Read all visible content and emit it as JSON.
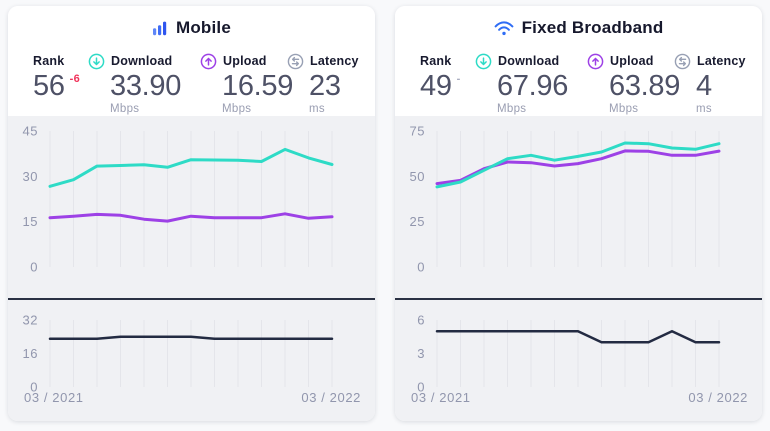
{
  "axis": {
    "start_label": "03 / 2021",
    "end_label": "03 / 2022"
  },
  "colors": {
    "download_teal": "#2edbc6",
    "upload_purple": "#9d41e6",
    "latency_navy": "#232b42",
    "brand_blue": "#3a62f4",
    "rank_down_red": "#f0325a",
    "chart_background": "#f0f1f4",
    "gridline": "#e4e5ea"
  },
  "cards": [
    {
      "title": "Mobile",
      "icon": "mobile-signal-bars-icon",
      "stats": {
        "rank": {
          "label": "Rank",
          "value": "56",
          "delta": "-6",
          "delta_direction": "down"
        },
        "download": {
          "label": "Download",
          "value": "33.90",
          "unit": "Mbps",
          "icon": "download-circle-icon"
        },
        "upload": {
          "label": "Upload",
          "value": "16.59",
          "unit": "Mbps",
          "icon": "upload-circle-icon"
        },
        "latency": {
          "label": "Latency",
          "value": "23",
          "unit": "ms",
          "icon": "latency-swap-icon"
        }
      }
    },
    {
      "title": "Fixed Broadband",
      "icon": "wifi-icon",
      "stats": {
        "rank": {
          "label": "Rank",
          "value": "49",
          "delta": "-",
          "delta_direction": "flat"
        },
        "download": {
          "label": "Download",
          "value": "67.96",
          "unit": "Mbps",
          "icon": "download-circle-icon"
        },
        "upload": {
          "label": "Upload",
          "value": "63.89",
          "unit": "Mbps",
          "icon": "upload-circle-icon"
        },
        "latency": {
          "label": "Latency",
          "value": "4",
          "unit": "ms",
          "icon": "latency-swap-icon"
        }
      }
    }
  ],
  "chart_data": [
    {
      "id": "mobile-speed-history",
      "type": "line",
      "layout": "main",
      "n_points": 13,
      "x_visible_labels": [
        "03 / 2021",
        "03 / 2022"
      ],
      "ylim": [
        0,
        45
      ],
      "yticks": [
        0,
        15,
        30,
        45
      ],
      "grid": "vertical-monthly",
      "legend": "none",
      "series": [
        {
          "name": "Download (Mbps)",
          "color": "#2edbc6",
          "width": 3,
          "values": [
            26.7,
            28.9,
            33.4,
            33.6,
            33.8,
            33.0,
            35.5,
            35.4,
            35.3,
            34.9,
            38.9,
            36.1,
            33.9
          ]
        },
        {
          "name": "Upload (Mbps)",
          "color": "#9d41e6",
          "width": 3,
          "values": [
            16.3,
            16.8,
            17.4,
            17.1,
            15.8,
            15.2,
            16.8,
            16.3,
            16.3,
            16.3,
            17.6,
            16.1,
            16.6
          ]
        }
      ]
    },
    {
      "id": "mobile-latency-history",
      "type": "line",
      "layout": "lower",
      "n_points": 13,
      "x_visible_labels": [
        "03 / 2021",
        "03 / 2022"
      ],
      "ylim": [
        0,
        32
      ],
      "yticks": [
        0,
        16,
        32
      ],
      "grid": "vertical-monthly",
      "legend": "none",
      "series": [
        {
          "name": "Latency (ms)",
          "color": "#232b42",
          "width": 2.5,
          "values": [
            23,
            23,
            23,
            24,
            24,
            24,
            24,
            23,
            23,
            23,
            23,
            23,
            23
          ]
        }
      ]
    },
    {
      "id": "fixed-speed-history",
      "type": "line",
      "layout": "main",
      "n_points": 13,
      "x_visible_labels": [
        "03 / 2021",
        "03 / 2022"
      ],
      "ylim": [
        0,
        75
      ],
      "yticks": [
        0,
        25,
        50,
        75
      ],
      "grid": "vertical-monthly",
      "legend": "none",
      "series": [
        {
          "name": "Download (Mbps)",
          "color": "#2edbc6",
          "width": 3,
          "values": [
            44.2,
            46.9,
            53.3,
            59.7,
            61.6,
            58.9,
            61.0,
            63.4,
            68.4,
            68.0,
            65.6,
            64.9,
            68.0
          ]
        },
        {
          "name": "Upload (Mbps)",
          "color": "#9d41e6",
          "width": 3,
          "values": [
            46.0,
            47.8,
            54.2,
            57.9,
            57.5,
            55.7,
            57.0,
            59.7,
            64.0,
            63.8,
            61.6,
            61.6,
            63.9
          ]
        }
      ]
    },
    {
      "id": "fixed-latency-history",
      "type": "line",
      "layout": "lower",
      "n_points": 13,
      "x_visible_labels": [
        "03 / 2021",
        "03 / 2022"
      ],
      "ylim": [
        0,
        6
      ],
      "yticks": [
        0,
        3,
        6
      ],
      "grid": "vertical-monthly",
      "legend": "none",
      "series": [
        {
          "name": "Latency (ms)",
          "color": "#232b42",
          "width": 2.5,
          "values": [
            5,
            5,
            5,
            5,
            5,
            5,
            5,
            4,
            4,
            4,
            5,
            4,
            4
          ]
        }
      ]
    }
  ]
}
